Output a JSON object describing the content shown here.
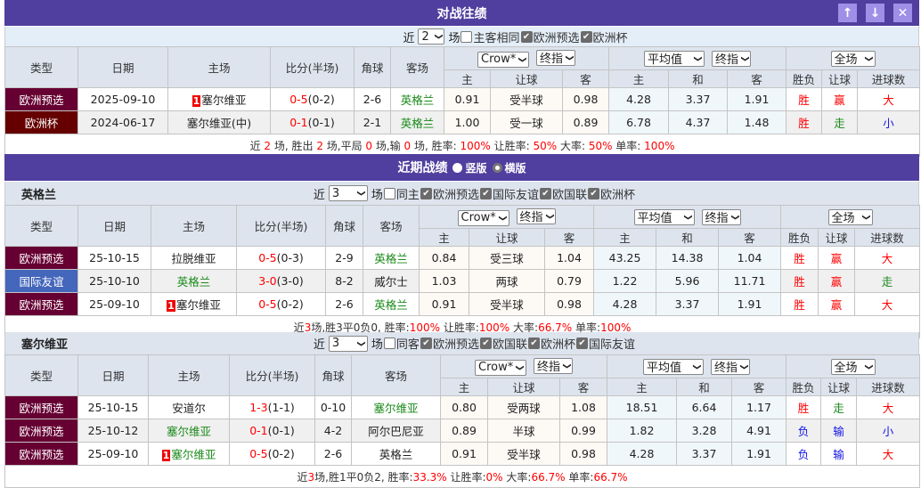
{
  "h2h": {
    "title": "对战往绩",
    "buttons": {
      "up": "↑",
      "down": "↓",
      "close": "✕"
    },
    "filter": {
      "prefix": "近",
      "count": "2",
      "suffix": "场",
      "same": "主客相同",
      "same_checked": false,
      "checks": [
        {
          "label": "欧洲预选",
          "on": true
        },
        {
          "label": "欧洲杯",
          "on": true
        }
      ]
    },
    "selects": {
      "company": "Crow*",
      "odds_type": "终指",
      "euro_company": "平均值",
      "euro_type": "终指",
      "period": "全场"
    },
    "headers": [
      "类型",
      "日期",
      "主场",
      "比分(半场)",
      "角球",
      "客场",
      "主",
      "让球",
      "客",
      "主",
      "和",
      "客",
      "胜负",
      "让球",
      "进球数"
    ],
    "rows": [
      {
        "type": "欧洲预选",
        "type_color": "#660033",
        "date": "2025-09-10",
        "home": "塞尔维亚",
        "home_badge": "1",
        "home_hl": false,
        "score": "0-5",
        "half": "(0-2)",
        "corner": "2-6",
        "away": "英格兰",
        "away_hl": true,
        "ah": [
          "0.91",
          "受半球",
          "0.98"
        ],
        "eu": [
          "4.28",
          "3.37",
          "1.91"
        ],
        "res": [
          {
            "t": "胜",
            "c": "red"
          },
          {
            "t": "赢",
            "c": "red"
          },
          {
            "t": "大",
            "c": "red"
          }
        ]
      },
      {
        "type": "欧洲杯",
        "type_color": "#660000",
        "date": "2024-06-17",
        "home": "塞尔维亚(中)",
        "home_badge": "",
        "home_hl": false,
        "score": "0-1",
        "half": "(0-1)",
        "corner": "2-1",
        "away": "英格兰",
        "away_hl": true,
        "ah": [
          "1.00",
          "受一球",
          "0.89"
        ],
        "eu": [
          "6.78",
          "4.37",
          "1.48"
        ],
        "res": [
          {
            "t": "胜",
            "c": "red"
          },
          {
            "t": "走",
            "c": "green"
          },
          {
            "t": "小",
            "c": "blue"
          }
        ]
      }
    ],
    "summary": [
      {
        "t": "近 "
      },
      {
        "t": "2",
        "hl": true
      },
      {
        "t": " 场, 胜出 "
      },
      {
        "t": "2",
        "hl": true
      },
      {
        "t": " 场,平局 "
      },
      {
        "t": "0",
        "hl": true
      },
      {
        "t": " 场,输 "
      },
      {
        "t": "0",
        "hl": true
      },
      {
        "t": " 场, 胜率: "
      },
      {
        "t": "100%",
        "hl": true
      },
      {
        "t": " 让胜率: "
      },
      {
        "t": "50%",
        "hl": true
      },
      {
        "t": " 大率: "
      },
      {
        "t": "50%",
        "hl": true
      },
      {
        "t": " 单率: "
      },
      {
        "t": "100%",
        "hl": true
      }
    ]
  },
  "recent": {
    "title": "近期战绩",
    "layout_options": [
      {
        "label": "竖版",
        "on": false
      },
      {
        "label": "横版",
        "on": true
      }
    ],
    "teams": [
      {
        "name": "英格兰",
        "filter": {
          "prefix": "近",
          "count": "3",
          "suffix": "场",
          "same": "同主",
          "same_checked": false,
          "checks": [
            {
              "label": "欧洲预选",
              "on": true
            },
            {
              "label": "国际友谊",
              "on": true
            },
            {
              "label": "欧国联",
              "on": true
            },
            {
              "label": "欧洲杯",
              "on": true
            }
          ]
        },
        "rows": [
          {
            "type": "欧洲预选",
            "type_color": "#660033",
            "date": "25-10-15",
            "home": "拉脱维亚",
            "home_badge": "",
            "home_hl": false,
            "score": "0-5",
            "half": "(0-3)",
            "corner": "2-9",
            "away": "英格兰",
            "away_hl": true,
            "ah": [
              "0.84",
              "受三球",
              "1.04"
            ],
            "eu": [
              "43.25",
              "14.38",
              "1.04"
            ],
            "res": [
              {
                "t": "胜",
                "c": "red"
              },
              {
                "t": "赢",
                "c": "red"
              },
              {
                "t": "大",
                "c": "red"
              }
            ]
          },
          {
            "type": "国际友谊",
            "type_color": "#4466bb",
            "date": "25-10-10",
            "home": "英格兰",
            "home_badge": "",
            "home_hl": true,
            "score": "3-0",
            "half": "(3-0)",
            "corner": "8-2",
            "away": "威尔士",
            "away_hl": false,
            "ah": [
              "1.03",
              "两球",
              "0.79"
            ],
            "eu": [
              "1.22",
              "5.96",
              "11.71"
            ],
            "res": [
              {
                "t": "胜",
                "c": "red"
              },
              {
                "t": "赢",
                "c": "red"
              },
              {
                "t": "走",
                "c": "green"
              }
            ]
          },
          {
            "type": "欧洲预选",
            "type_color": "#660033",
            "date": "25-09-10",
            "home": "塞尔维亚",
            "home_badge": "1",
            "home_hl": false,
            "score": "0-5",
            "half": "(0-2)",
            "corner": "2-6",
            "away": "英格兰",
            "away_hl": true,
            "ah": [
              "0.91",
              "受半球",
              "0.98"
            ],
            "eu": [
              "4.28",
              "3.37",
              "1.91"
            ],
            "res": [
              {
                "t": "胜",
                "c": "red"
              },
              {
                "t": "赢",
                "c": "red"
              },
              {
                "t": "大",
                "c": "red"
              }
            ]
          }
        ],
        "summary": [
          {
            "t": "近"
          },
          {
            "t": "3",
            "hl": true
          },
          {
            "t": "场,胜3平0负0, 胜率:"
          },
          {
            "t": "100%",
            "hl": true
          },
          {
            "t": " 让胜率:"
          },
          {
            "t": "100%",
            "hl": true
          },
          {
            "t": " 大率:"
          },
          {
            "t": "66.7%",
            "hl": true
          },
          {
            "t": " 单率:"
          },
          {
            "t": "100%",
            "hl": true
          }
        ]
      },
      {
        "name": "塞尔维亚",
        "filter": {
          "prefix": "近",
          "count": "3",
          "suffix": "场",
          "same": "同客",
          "same_checked": false,
          "checks": [
            {
              "label": "欧洲预选",
              "on": true
            },
            {
              "label": "欧国联",
              "on": true
            },
            {
              "label": "欧洲杯",
              "on": true
            },
            {
              "label": "国际友谊",
              "on": true
            }
          ]
        },
        "rows": [
          {
            "type": "欧洲预选",
            "type_color": "#660033",
            "date": "25-10-15",
            "home": "安道尔",
            "home_badge": "",
            "home_hl": false,
            "score": "1-3",
            "half": "(1-1)",
            "corner": "0-10",
            "away": "塞尔维亚",
            "away_hl": true,
            "ah": [
              "0.80",
              "受两球",
              "1.08"
            ],
            "eu": [
              "18.51",
              "6.64",
              "1.17"
            ],
            "res": [
              {
                "t": "胜",
                "c": "red"
              },
              {
                "t": "走",
                "c": "green"
              },
              {
                "t": "大",
                "c": "red"
              }
            ]
          },
          {
            "type": "欧洲预选",
            "type_color": "#660033",
            "date": "25-10-12",
            "home": "塞尔维亚",
            "home_badge": "",
            "home_hl": true,
            "score": "0-1",
            "half": "(0-1)",
            "corner": "4-2",
            "away": "阿尔巴尼亚",
            "away_hl": false,
            "ah": [
              "0.89",
              "半球",
              "0.99"
            ],
            "eu": [
              "1.82",
              "3.28",
              "4.91"
            ],
            "res": [
              {
                "t": "负",
                "c": "blue"
              },
              {
                "t": "输",
                "c": "blue"
              },
              {
                "t": "小",
                "c": "blue"
              }
            ]
          },
          {
            "type": "欧洲预选",
            "type_color": "#660033",
            "date": "25-09-10",
            "home": "塞尔维亚",
            "home_badge": "1",
            "home_hl": true,
            "score": "0-5",
            "half": "(0-2)",
            "corner": "2-6",
            "away": "英格兰",
            "away_hl": false,
            "ah": [
              "0.91",
              "受半球",
              "0.98"
            ],
            "eu": [
              "4.28",
              "3.37",
              "1.91"
            ],
            "res": [
              {
                "t": "负",
                "c": "blue"
              },
              {
                "t": "输",
                "c": "blue"
              },
              {
                "t": "大",
                "c": "red"
              }
            ]
          }
        ],
        "summary": [
          {
            "t": "近"
          },
          {
            "t": "3",
            "hl": true
          },
          {
            "t": "场,胜1平0负2, 胜率:"
          },
          {
            "t": "33.3%",
            "hl": true
          },
          {
            "t": " 让胜率:"
          },
          {
            "t": "0%",
            "hl": true
          },
          {
            "t": " 大率:"
          },
          {
            "t": "66.7%",
            "hl": true
          },
          {
            "t": " 单率:"
          },
          {
            "t": "66.7%",
            "hl": true
          }
        ]
      }
    ]
  }
}
